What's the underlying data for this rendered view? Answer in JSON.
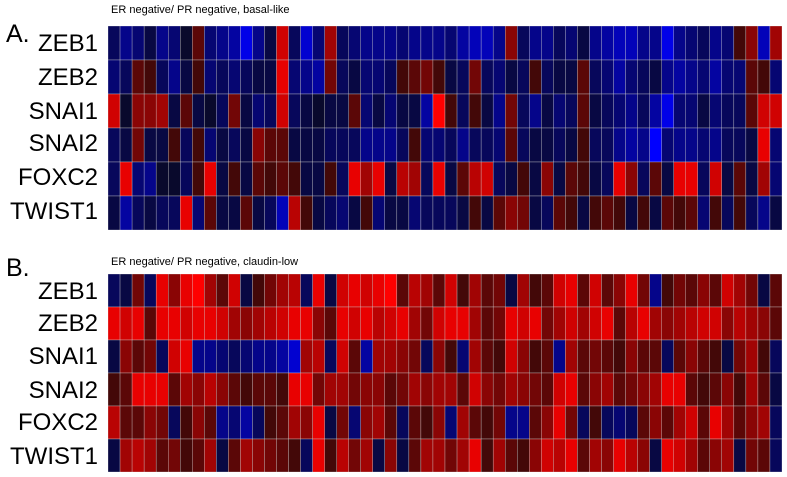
{
  "chart_data": [
    {
      "type": "heatmap",
      "panel_label": "A.",
      "subtitle": "ER negative/ PR negative, basal-like",
      "rows": [
        "ZEB1",
        "ZEB2",
        "SNAI1",
        "SNAI2",
        "FOXC2",
        "TWIST1"
      ],
      "n_columns": 56,
      "scale": "red = high, blue = low, black = neutral",
      "values": [
        [
          -0.3,
          -0.5,
          -0.4,
          -0.2,
          -0.5,
          -0.4,
          -0.1,
          0.3,
          -0.4,
          -0.5,
          -0.6,
          -0.9,
          -0.5,
          -0.2,
          0.8,
          -0.3,
          -0.8,
          -0.4,
          0.6,
          -0.3,
          -0.4,
          -0.5,
          -0.5,
          -0.5,
          -0.4,
          -0.5,
          -0.5,
          -0.5,
          -0.4,
          -0.6,
          -0.7,
          -0.7,
          -0.5,
          0.5,
          -0.3,
          -0.5,
          -0.5,
          -0.3,
          -0.4,
          -0.2,
          -0.5,
          -0.6,
          -0.7,
          -0.7,
          -0.5,
          -0.5,
          -0.9,
          -0.5,
          -0.4,
          -0.3,
          -0.5,
          -0.4,
          0.2,
          0.5,
          -0.7,
          0.6
        ],
        [
          -0.4,
          -0.3,
          0.3,
          0.2,
          -0.3,
          -0.5,
          -0.2,
          0.2,
          -0.4,
          -0.3,
          -0.4,
          -0.3,
          -0.2,
          -0.2,
          0.9,
          -0.4,
          -0.5,
          -0.6,
          0.4,
          -0.3,
          -0.2,
          -0.4,
          -0.4,
          -0.3,
          0.2,
          0.3,
          0.4,
          0.2,
          -0.2,
          -0.3,
          0.4,
          -0.3,
          -0.4,
          -0.2,
          -0.3,
          0.2,
          -0.3,
          -0.2,
          -0.2,
          0.3,
          -0.3,
          -0.4,
          -0.6,
          -0.4,
          -0.3,
          -0.2,
          -0.5,
          -0.6,
          -0.5,
          -0.4,
          -0.6,
          -0.4,
          -0.4,
          0.3,
          0.2,
          -0.4
        ],
        [
          0.8,
          -0.1,
          0.5,
          0.5,
          0.6,
          -0.2,
          0.3,
          -0.2,
          -0.1,
          -0.3,
          0.4,
          -0.2,
          -0.4,
          -0.3,
          0.8,
          -0.3,
          -0.2,
          -0.1,
          -0.2,
          -0.2,
          0.3,
          -0.4,
          -0.2,
          -0.4,
          -0.2,
          -0.2,
          -0.6,
          1.0,
          0.2,
          -0.3,
          0.2,
          -0.2,
          -0.5,
          0.4,
          -0.3,
          -0.5,
          -0.2,
          -0.4,
          -0.3,
          0.3,
          -0.2,
          -0.3,
          -0.4,
          -0.5,
          -0.3,
          -0.6,
          -0.9,
          -0.4,
          -0.4,
          -0.2,
          -0.4,
          -0.3,
          -0.3,
          0.3,
          0.8,
          0.8
        ],
        [
          -0.3,
          -0.2,
          0.4,
          -0.2,
          -0.2,
          0.2,
          -0.3,
          0.2,
          -0.4,
          -0.2,
          -0.3,
          -0.2,
          0.5,
          0.3,
          0.3,
          -0.2,
          -0.2,
          -0.2,
          -0.3,
          -0.3,
          -0.3,
          -0.5,
          -0.5,
          -0.5,
          -0.3,
          0.2,
          -0.4,
          -0.4,
          -0.3,
          -0.5,
          -0.3,
          -0.3,
          -0.4,
          0.3,
          -0.3,
          -0.2,
          -0.2,
          -0.3,
          -0.2,
          0.2,
          -0.3,
          -0.3,
          -0.5,
          -0.6,
          -0.5,
          -1.0,
          -0.4,
          -0.5,
          -0.5,
          -0.4,
          -0.5,
          -0.3,
          -0.3,
          -0.2,
          0.9,
          -0.4
        ],
        [
          -0.3,
          0.9,
          -0.4,
          -0.5,
          -0.1,
          -0.1,
          -0.3,
          0.2,
          0.9,
          -0.2,
          0.2,
          -0.2,
          0.3,
          0.2,
          0.3,
          0.2,
          -0.2,
          -0.2,
          0.2,
          -0.3,
          0.9,
          0.6,
          0.9,
          -0.2,
          0.7,
          0.6,
          -0.3,
          0.9,
          -0.2,
          0.3,
          0.7,
          0.8,
          -0.3,
          -0.2,
          0.2,
          -0.2,
          0.5,
          -0.2,
          0.3,
          0.2,
          -0.2,
          -0.3,
          0.9,
          0.5,
          -0.3,
          0.3,
          -0.2,
          0.9,
          0.9,
          -0.3,
          0.8,
          -0.2,
          0.3,
          -0.2,
          0.6,
          -0.4
        ],
        [
          -0.2,
          -0.6,
          -0.3,
          -0.2,
          -0.3,
          -0.3,
          0.9,
          -0.4,
          0.3,
          -0.2,
          -0.2,
          0.3,
          -0.2,
          -0.3,
          -0.7,
          0.7,
          0.2,
          -0.2,
          -0.3,
          -0.4,
          -0.2,
          0.2,
          -0.4,
          -0.2,
          -0.2,
          -0.4,
          -0.3,
          -0.3,
          -0.3,
          -0.2,
          0.2,
          -0.2,
          0.3,
          0.5,
          0.4,
          -0.2,
          -0.3,
          0.3,
          0.2,
          -0.2,
          0.2,
          0.3,
          0.2,
          -0.2,
          0.2,
          -0.2,
          0.3,
          0.2,
          0.3,
          -0.4,
          0.2,
          -0.3,
          0.2,
          -0.3,
          -0.5,
          -0.2
        ]
      ]
    },
    {
      "type": "heatmap",
      "panel_label": "B.",
      "subtitle": "ER negative/ PR negative, claudin-low",
      "rows": [
        "ZEB1",
        "ZEB2",
        "SNAI1",
        "SNAI2",
        "FOXC2",
        "TWIST1"
      ],
      "n_columns": 56,
      "scale": "red = high, blue = low, black = neutral",
      "values": [
        [
          -0.3,
          -0.2,
          0.4,
          -0.3,
          0.9,
          0.5,
          0.9,
          1.0,
          0.6,
          0.3,
          0.8,
          -0.2,
          0.2,
          0.4,
          0.6,
          0.7,
          -0.3,
          0.9,
          -0.2,
          0.8,
          0.9,
          0.8,
          0.9,
          1.0,
          0.3,
          0.7,
          0.6,
          0.3,
          0.8,
          0.2,
          0.6,
          0.3,
          0.4,
          -0.2,
          0.6,
          0.2,
          0.3,
          0.8,
          0.9,
          0.3,
          0.8,
          0.3,
          0.5,
          0.9,
          0.4,
          -0.5,
          0.2,
          0.4,
          0.3,
          0.5,
          0.3,
          0.8,
          0.6,
          0.4,
          -0.2,
          0.3
        ],
        [
          0.9,
          0.8,
          0.9,
          0.3,
          0.9,
          0.9,
          0.8,
          0.9,
          0.9,
          0.8,
          0.6,
          0.5,
          0.6,
          0.7,
          0.8,
          0.9,
          0.9,
          0.5,
          0.3,
          0.9,
          0.8,
          0.9,
          0.7,
          0.8,
          0.9,
          0.6,
          0.4,
          0.8,
          0.9,
          0.9,
          0.6,
          0.3,
          0.4,
          0.9,
          0.8,
          0.9,
          0.4,
          0.6,
          0.8,
          0.6,
          0.8,
          0.9,
          0.3,
          0.7,
          0.9,
          0.6,
          0.5,
          0.6,
          0.7,
          0.8,
          0.8,
          0.5,
          0.7,
          0.6,
          0.5,
          0.3
        ],
        [
          -0.2,
          0.5,
          0.3,
          0.4,
          -0.3,
          0.8,
          0.9,
          -0.5,
          -0.5,
          -0.4,
          -0.3,
          -0.4,
          -0.5,
          -0.5,
          -0.6,
          -0.8,
          0.6,
          0.7,
          -0.3,
          0.8,
          0.3,
          -0.6,
          0.6,
          0.6,
          0.5,
          0.4,
          -0.3,
          0.5,
          0.2,
          -0.4,
          0.6,
          0.3,
          0.2,
          0.8,
          0.5,
          0.2,
          0.3,
          -0.5,
          0.6,
          0.3,
          0.4,
          0.3,
          0.2,
          0.5,
          0.3,
          0.3,
          -0.3,
          0.3,
          0.5,
          0.3,
          0.2,
          -0.2,
          0.4,
          0.6,
          0.2,
          -0.3
        ],
        [
          0.2,
          0.3,
          0.9,
          0.9,
          0.9,
          0.3,
          0.6,
          0.5,
          0.7,
          0.5,
          0.3,
          0.2,
          0.3,
          0.3,
          0.2,
          0.9,
          0.9,
          0.4,
          0.6,
          0.6,
          0.4,
          0.5,
          0.5,
          0.3,
          0.4,
          0.6,
          0.5,
          0.6,
          0.6,
          0.3,
          0.8,
          0.5,
          0.4,
          0.6,
          0.5,
          0.4,
          0.3,
          0.8,
          0.9,
          0.3,
          0.5,
          0.6,
          0.3,
          0.4,
          0.5,
          0.6,
          0.9,
          0.9,
          0.3,
          0.2,
          0.3,
          0.5,
          0.2,
          0.6,
          0.3,
          -0.2
        ],
        [
          0.7,
          0.3,
          0.3,
          0.5,
          0.4,
          -0.3,
          0.2,
          0.5,
          0.3,
          -0.5,
          -0.4,
          -0.6,
          -0.3,
          0.2,
          0.3,
          0.6,
          0.5,
          0.9,
          -0.2,
          0.4,
          -0.4,
          0.5,
          0.6,
          0.3,
          -0.3,
          0.3,
          0.2,
          0.5,
          -0.4,
          0.6,
          0.3,
          0.2,
          0.4,
          -0.5,
          -0.5,
          0.3,
          0.5,
          0.9,
          0.4,
          -0.3,
          0.2,
          -0.3,
          -0.4,
          -0.3,
          0.3,
          0.5,
          0.3,
          0.6,
          0.8,
          0.3,
          0.9,
          0.6,
          0.3,
          0.5,
          0.6,
          -0.3
        ],
        [
          -0.2,
          0.6,
          0.7,
          0.6,
          0.3,
          0.4,
          0.2,
          0.3,
          0.6,
          -0.2,
          0.3,
          0.6,
          0.5,
          0.4,
          0.3,
          0.2,
          -0.3,
          0.9,
          0.2,
          0.7,
          0.4,
          0.6,
          -0.2,
          0.5,
          -0.2,
          0.3,
          0.6,
          0.6,
          0.4,
          0.6,
          0.9,
          0.2,
          0.6,
          0.3,
          0.2,
          0.5,
          0.8,
          0.7,
          0.9,
          0.3,
          0.6,
          0.5,
          0.9,
          0.7,
          0.5,
          -0.2,
          0.9,
          0.8,
          0.6,
          0.3,
          0.5,
          0.6,
          -0.2,
          0.4,
          0.3,
          -0.3
        ]
      ]
    }
  ]
}
